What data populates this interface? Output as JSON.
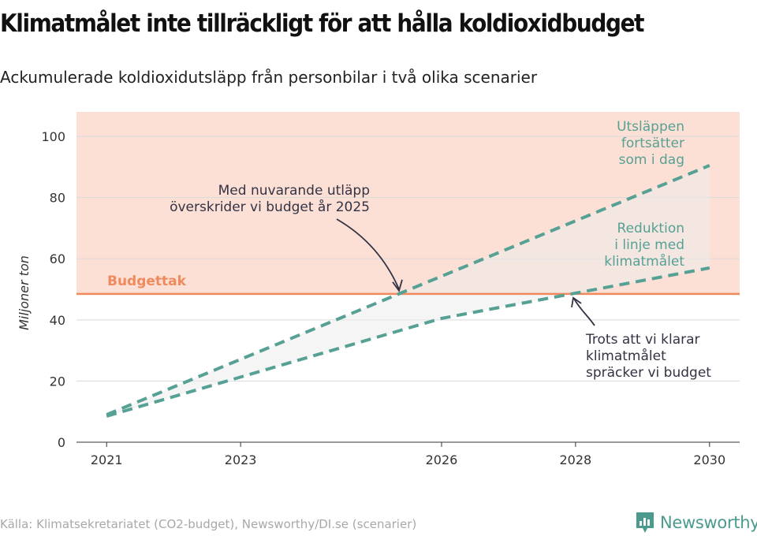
{
  "header": {
    "title": "Klimatmålet inte tillräckligt för att hålla koldioxidbudget",
    "subtitle": "Ackumulerade koldioxidutsläpp från personbilar i två olika scenarier"
  },
  "footer": {
    "source": "Källa: Klimatsekretariatet (CO2-budget), Newsworthy/DI.se (scenarier)",
    "brand": "Newsworthy"
  },
  "colors": {
    "budget_zone": "#fce0d6",
    "budget_line": "#f08a5d",
    "series": "#56a194",
    "annotation": "#333344",
    "shade": "#ededed"
  },
  "chart_data": {
    "type": "line",
    "ylabel": "Miljoner ton",
    "ylim": [
      0,
      108
    ],
    "xlim": [
      2020.55,
      2030.45
    ],
    "y_ticks": [
      0,
      20,
      40,
      60,
      80,
      100
    ],
    "x_ticks": [
      2021,
      2023,
      2026,
      2028,
      2030
    ],
    "grid": true,
    "budget": {
      "label": "Budgettak",
      "value": 48.5
    },
    "series": [
      {
        "points": [
          [
            2021,
            9
          ],
          [
            2030,
            90.5
          ]
        ],
        "label": [
          "Utsläppen",
          "fortsätter",
          "som i dag"
        ]
      },
      {
        "points": [
          [
            2021,
            8.5
          ],
          [
            2026,
            40.5
          ],
          [
            2030,
            57
          ]
        ],
        "label": [
          "Reduktion",
          "i linje med",
          "klimatmålet"
        ]
      }
    ],
    "annotations": [
      {
        "lines": [
          "Med nuvarande utläpp",
          "överskrider vi budget år 2025"
        ]
      },
      {
        "lines": [
          "Trots att vi klarar",
          "klimatmålet",
          "spräcker vi budget"
        ]
      }
    ]
  }
}
